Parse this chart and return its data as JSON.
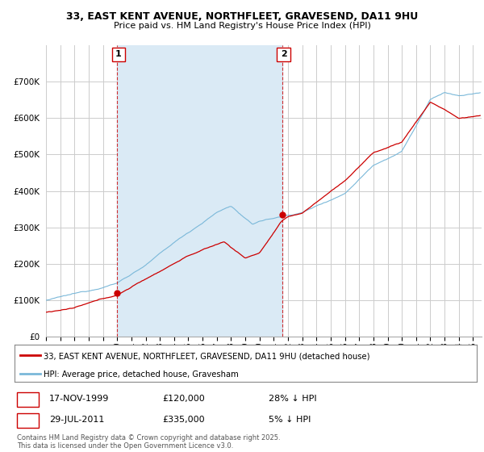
{
  "title1": "33, EAST KENT AVENUE, NORTHFLEET, GRAVESEND, DA11 9HU",
  "title2": "Price paid vs. HM Land Registry's House Price Index (HPI)",
  "hpi_color": "#7ab8d9",
  "price_color": "#cc0000",
  "shade_color": "#daeaf5",
  "bg_color": "#ffffff",
  "grid_color": "#cccccc",
  "ylim": [
    0,
    800000
  ],
  "yticks": [
    0,
    100000,
    200000,
    300000,
    400000,
    500000,
    600000,
    700000
  ],
  "legend_label_price": "33, EAST KENT AVENUE, NORTHFLEET, GRAVESEND, DA11 9HU (detached house)",
  "legend_label_hpi": "HPI: Average price, detached house, Gravesham",
  "purchase1_year": 2000.0,
  "purchase1_price": 120000,
  "purchase1_date": "17-NOV-1999",
  "purchase1_hpi_pct": "28% ↓ HPI",
  "purchase2_year": 2011.6,
  "purchase2_price": 335000,
  "purchase2_date": "29-JUL-2011",
  "purchase2_hpi_pct": "5% ↓ HPI",
  "footnote": "Contains HM Land Registry data © Crown copyright and database right 2025.\nThis data is licensed under the Open Government Licence v3.0."
}
